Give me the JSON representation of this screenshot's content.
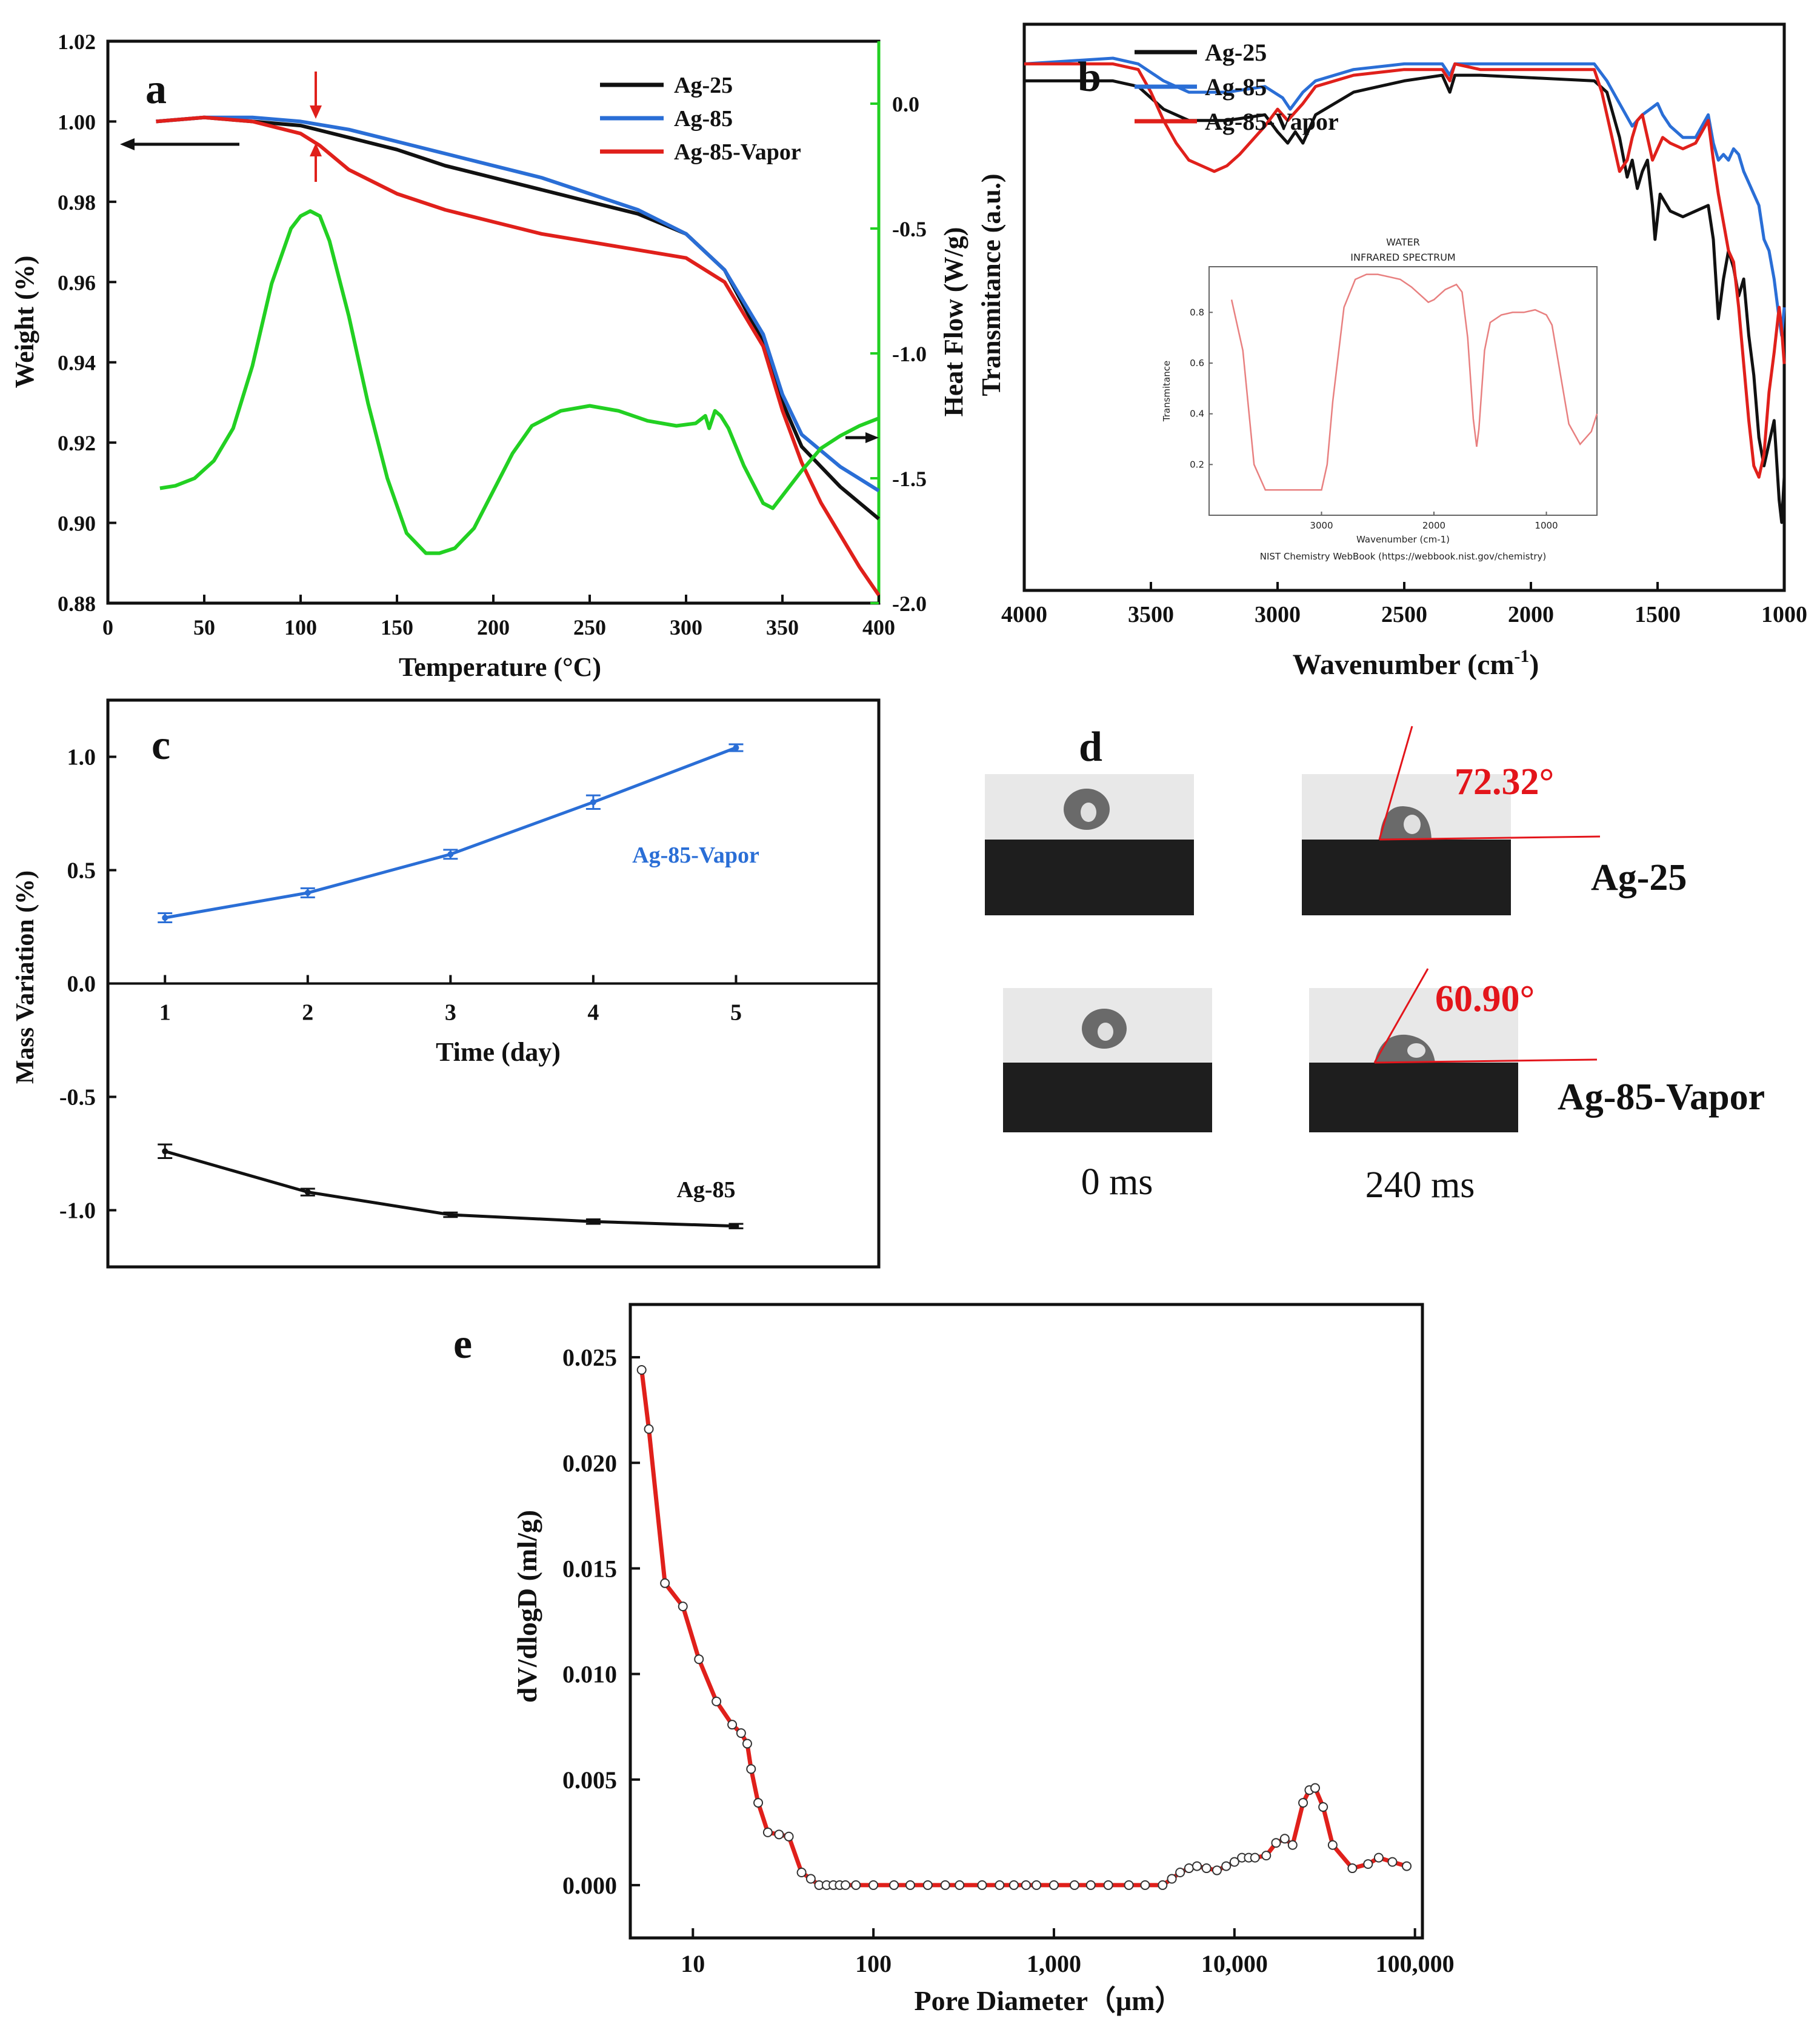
{
  "colors": {
    "black": "#111111",
    "blue": "#2a6ed6",
    "red": "#e0201b",
    "green": "#22d022",
    "inset_red": "#e88080",
    "angle_red": "#e3151b"
  },
  "chart_data": [
    {
      "panel": "a",
      "type": "line",
      "xlabel": "Temperature (°C)",
      "ylabel": "Weight (%)",
      "y2label": "Heat Flow (W/g)",
      "xlim": [
        0,
        400
      ],
      "ylim": [
        0.88,
        1.02
      ],
      "y2lim": [
        -2.0,
        0.25
      ],
      "xticks": [
        0,
        50,
        100,
        150,
        200,
        250,
        300,
        350,
        400
      ],
      "yticks": [
        0.88,
        0.9,
        0.92,
        0.94,
        0.96,
        0.98,
        1.0,
        1.02
      ],
      "y2ticks": [
        -2.0,
        -1.5,
        -1.0,
        -0.5,
        0.0
      ],
      "legend": [
        "Ag-25",
        "Ag-85",
        "Ag-85-Vapor"
      ],
      "series": [
        {
          "name": "Ag-25",
          "x": [
            25,
            50,
            75,
            100,
            125,
            150,
            175,
            200,
            225,
            250,
            275,
            300,
            320,
            340,
            350,
            360,
            370,
            380,
            390,
            400
          ],
          "y": [
            1.0,
            1.001,
            1.0,
            0.999,
            0.996,
            0.993,
            0.989,
            0.986,
            0.983,
            0.98,
            0.977,
            0.972,
            0.963,
            0.945,
            0.93,
            0.919,
            0.914,
            0.909,
            0.905,
            0.901
          ]
        },
        {
          "name": "Ag-85",
          "x": [
            25,
            50,
            75,
            100,
            125,
            150,
            175,
            200,
            225,
            250,
            275,
            300,
            320,
            340,
            350,
            360,
            370,
            380,
            390,
            400
          ],
          "y": [
            1.0,
            1.001,
            1.001,
            1.0,
            0.998,
            0.995,
            0.992,
            0.989,
            0.986,
            0.982,
            0.978,
            0.972,
            0.963,
            0.947,
            0.932,
            0.922,
            0.918,
            0.914,
            0.911,
            0.908
          ]
        },
        {
          "name": "Ag-85-Vapor",
          "x": [
            25,
            50,
            75,
            100,
            110,
            125,
            150,
            175,
            200,
            225,
            250,
            275,
            300,
            320,
            340,
            350,
            360,
            370,
            380,
            390,
            400
          ],
          "y": [
            1.0,
            1.001,
            1.0,
            0.997,
            0.994,
            0.988,
            0.982,
            0.978,
            0.975,
            0.972,
            0.97,
            0.968,
            0.966,
            0.96,
            0.944,
            0.928,
            0.915,
            0.905,
            0.897,
            0.889,
            0.882
          ]
        },
        {
          "name": "Heat Flow",
          "axis": "y2",
          "x": [
            27,
            35,
            45,
            55,
            65,
            75,
            85,
            95,
            100,
            105,
            110,
            115,
            125,
            135,
            145,
            155,
            165,
            172,
            180,
            190,
            200,
            210,
            220,
            235,
            250,
            265,
            280,
            295,
            305,
            310,
            312,
            315,
            318,
            322,
            330,
            340,
            345,
            350,
            360,
            370,
            380,
            390,
            400
          ],
          "y": [
            -1.54,
            -1.53,
            -1.5,
            -1.43,
            -1.3,
            -1.05,
            -0.72,
            -0.5,
            -0.45,
            -0.43,
            -0.45,
            -0.55,
            -0.85,
            -1.2,
            -1.5,
            -1.72,
            -1.8,
            -1.8,
            -1.78,
            -1.7,
            -1.55,
            -1.4,
            -1.29,
            -1.23,
            -1.21,
            -1.23,
            -1.27,
            -1.29,
            -1.28,
            -1.25,
            -1.3,
            -1.23,
            -1.25,
            -1.3,
            -1.45,
            -1.6,
            -1.62,
            -1.57,
            -1.47,
            -1.38,
            -1.33,
            -1.29,
            -1.26
          ]
        }
      ],
      "panel_label": "a"
    },
    {
      "panel": "b",
      "type": "line",
      "xlabel": "Wavenumber (cm",
      "xlabel_sup": "-1",
      "xlabel_end": ")",
      "ylabel": "Transmitance (a.u.)",
      "xlim": [
        4000,
        1000
      ],
      "ylim": [
        0,
        1
      ],
      "xticks": [
        4000,
        3500,
        3000,
        2500,
        2000,
        1500,
        1000
      ],
      "legend": [
        "Ag-25",
        "Ag-85",
        "Ag-85-Vapor"
      ],
      "series": [
        {
          "name": "Ag-25",
          "x": [
            4000,
            3650,
            3550,
            3450,
            3350,
            3200,
            3050,
            3000,
            2960,
            2930,
            2900,
            2850,
            2700,
            2500,
            2350,
            2320,
            2300,
            2200,
            1750,
            1700,
            1650,
            1620,
            1600,
            1580,
            1560,
            1540,
            1520,
            1510,
            1490,
            1450,
            1400,
            1350,
            1300,
            1280,
            1260,
            1240,
            1220,
            1200,
            1180,
            1160,
            1140,
            1120,
            1100,
            1080,
            1060,
            1040,
            1020,
            1010,
            1000
          ],
          "y": [
            0.9,
            0.9,
            0.89,
            0.85,
            0.83,
            0.83,
            0.84,
            0.81,
            0.79,
            0.81,
            0.79,
            0.84,
            0.88,
            0.9,
            0.91,
            0.88,
            0.91,
            0.91,
            0.9,
            0.88,
            0.8,
            0.73,
            0.76,
            0.71,
            0.74,
            0.76,
            0.68,
            0.62,
            0.7,
            0.67,
            0.66,
            0.67,
            0.68,
            0.62,
            0.48,
            0.55,
            0.6,
            0.57,
            0.52,
            0.55,
            0.45,
            0.38,
            0.27,
            0.22,
            0.26,
            0.3,
            0.16,
            0.12,
            0.2
          ]
        },
        {
          "name": "Ag-85",
          "x": [
            4000,
            3650,
            3550,
            3450,
            3350,
            3200,
            3050,
            2980,
            2950,
            2900,
            2850,
            2700,
            2500,
            2350,
            2320,
            2300,
            2200,
            1750,
            1700,
            1650,
            1600,
            1560,
            1530,
            1500,
            1480,
            1450,
            1400,
            1350,
            1300,
            1280,
            1260,
            1240,
            1220,
            1200,
            1180,
            1160,
            1140,
            1120,
            1100,
            1080,
            1060,
            1040,
            1020,
            1010,
            1000
          ],
          "y": [
            0.93,
            0.94,
            0.93,
            0.9,
            0.88,
            0.88,
            0.89,
            0.87,
            0.85,
            0.88,
            0.9,
            0.92,
            0.93,
            0.93,
            0.91,
            0.93,
            0.93,
            0.93,
            0.9,
            0.86,
            0.82,
            0.84,
            0.85,
            0.86,
            0.84,
            0.82,
            0.8,
            0.8,
            0.84,
            0.79,
            0.76,
            0.77,
            0.76,
            0.78,
            0.77,
            0.74,
            0.72,
            0.7,
            0.68,
            0.62,
            0.6,
            0.55,
            0.48,
            0.45,
            0.5
          ]
        },
        {
          "name": "Ag-85-Vapor",
          "x": [
            4000,
            3650,
            3550,
            3500,
            3450,
            3400,
            3350,
            3300,
            3250,
            3200,
            3150,
            3050,
            3000,
            2960,
            2900,
            2850,
            2700,
            2500,
            2350,
            2320,
            2300,
            2200,
            1750,
            1720,
            1700,
            1680,
            1650,
            1620,
            1600,
            1580,
            1560,
            1540,
            1520,
            1500,
            1480,
            1450,
            1400,
            1350,
            1300,
            1280,
            1260,
            1240,
            1220,
            1200,
            1180,
            1160,
            1140,
            1120,
            1100,
            1080,
            1060,
            1040,
            1020,
            1010,
            1000
          ],
          "y": [
            0.93,
            0.93,
            0.92,
            0.88,
            0.83,
            0.79,
            0.76,
            0.75,
            0.74,
            0.75,
            0.77,
            0.82,
            0.85,
            0.83,
            0.86,
            0.89,
            0.91,
            0.92,
            0.92,
            0.9,
            0.93,
            0.92,
            0.92,
            0.88,
            0.84,
            0.8,
            0.74,
            0.76,
            0.8,
            0.83,
            0.84,
            0.8,
            0.76,
            0.78,
            0.8,
            0.79,
            0.78,
            0.79,
            0.83,
            0.76,
            0.7,
            0.65,
            0.6,
            0.58,
            0.5,
            0.4,
            0.3,
            0.22,
            0.2,
            0.24,
            0.35,
            0.42,
            0.5,
            0.46,
            0.4
          ]
        }
      ],
      "panel_label": "b"
    },
    {
      "panel": "c",
      "type": "line",
      "xlabel": "Time (day)",
      "ylabel": "Mass Variation (%)",
      "xlim": [
        0.6,
        6.0
      ],
      "ylim": [
        -1.25,
        1.25
      ],
      "xticks": [
        1,
        2,
        3,
        4,
        5
      ],
      "yticks": [
        -1.0,
        -0.5,
        0.0,
        0.5,
        1.0
      ],
      "series": [
        {
          "name": "Ag-85-Vapor",
          "x": [
            1,
            2,
            3,
            4,
            5
          ],
          "y": [
            0.29,
            0.4,
            0.57,
            0.8,
            1.04
          ],
          "err": [
            0.02,
            0.02,
            0.02,
            0.03,
            0.015
          ]
        },
        {
          "name": "Ag-85",
          "x": [
            1,
            2,
            3,
            4,
            5
          ],
          "y": [
            -0.74,
            -0.92,
            -1.02,
            -1.05,
            -1.07
          ],
          "err": [
            0.03,
            0.015,
            0.01,
            0.01,
            0.01
          ]
        }
      ],
      "panel_label": "c"
    },
    {
      "panel": "e",
      "type": "line",
      "xscale": "log",
      "xlabel": "Pore Diameter（μm）",
      "ylabel": "dV/dlogD (ml/g)",
      "xlim": [
        4.5,
        110000
      ],
      "ylim": [
        -0.0025,
        0.0275
      ],
      "xticks": [
        10,
        100,
        1000,
        10000,
        100000
      ],
      "xticklabels": [
        "10",
        "100",
        "1,000",
        "10,000",
        "100,000"
      ],
      "yticks": [
        0.0,
        0.005,
        0.01,
        0.015,
        0.02,
        0.025
      ],
      "yticklabels": [
        "0.000",
        "0.005",
        "0.010",
        "0.015",
        "0.020",
        "0.025"
      ],
      "series": [
        {
          "name": "pore size distribution",
          "x": [
            5.2,
            5.7,
            7.0,
            8.8,
            10.8,
            13.5,
            16.5,
            18.5,
            20,
            21,
            23,
            26,
            30,
            34,
            40,
            45,
            50,
            55,
            60,
            65,
            70,
            80,
            100,
            130,
            160,
            200,
            250,
            300,
            400,
            500,
            600,
            700,
            800,
            1000,
            1300,
            1600,
            2000,
            2600,
            3200,
            4000,
            4500,
            5000,
            5600,
            6200,
            7000,
            8000,
            9000,
            10000,
            11000,
            12000,
            13000,
            15000,
            17000,
            19000,
            21000,
            24000,
            26000,
            28000,
            31000,
            35000,
            45000,
            55000,
            63000,
            75000,
            90000
          ],
          "y": [
            0.0244,
            0.0216,
            0.0143,
            0.0132,
            0.0107,
            0.0087,
            0.0076,
            0.0072,
            0.0067,
            0.0055,
            0.0039,
            0.0025,
            0.0024,
            0.0023,
            0.0006,
            0.0003,
            0.0,
            0.0,
            0.0,
            0.0,
            0.0,
            0.0,
            0.0,
            0.0,
            0.0,
            0.0,
            0.0,
            0.0,
            0.0,
            0.0,
            0.0,
            0.0,
            0.0,
            0.0,
            0.0,
            0.0,
            0.0,
            0.0,
            0.0,
            0.0,
            0.0003,
            0.0006,
            0.0008,
            0.0009,
            0.0008,
            0.0007,
            0.0009,
            0.0011,
            0.0013,
            0.0013,
            0.0013,
            0.0014,
            0.002,
            0.0022,
            0.0019,
            0.0039,
            0.0045,
            0.0046,
            0.0037,
            0.0019,
            0.0008,
            0.001,
            0.0013,
            0.0011,
            0.0009
          ]
        }
      ],
      "panel_label": "e"
    }
  ],
  "panel_a": {
    "y2_arrow_hint": "right",
    "y_arrow_hint": "left"
  },
  "panel_b_inset": {
    "title1": "WATER",
    "title2": "INFRARED SPECTRUM",
    "ylabel": "Transmitance",
    "xlabel": "Wavenumber (cm-1)",
    "source": "NIST Chemistry WebBook (https://webbook.nist.gov/chemistry)",
    "xticks": [
      "3000",
      "2000",
      "1000"
    ],
    "yticks": [
      "0.2",
      "0.4",
      "0.6",
      "0.8"
    ],
    "x": [
      3800,
      3700,
      3600,
      3500,
      3400,
      3300,
      3200,
      3100,
      3000,
      2950,
      2900,
      2800,
      2700,
      2600,
      2500,
      2400,
      2300,
      2200,
      2100,
      2050,
      2000,
      1900,
      1800,
      1750,
      1700,
      1650,
      1620,
      1600,
      1550,
      1500,
      1400,
      1300,
      1200,
      1100,
      1000,
      950,
      900,
      800,
      700,
      600,
      550
    ],
    "y": [
      0.85,
      0.65,
      0.2,
      0.1,
      0.1,
      0.1,
      0.1,
      0.1,
      0.1,
      0.2,
      0.45,
      0.82,
      0.93,
      0.95,
      0.95,
      0.94,
      0.93,
      0.9,
      0.86,
      0.84,
      0.85,
      0.89,
      0.91,
      0.88,
      0.7,
      0.38,
      0.27,
      0.34,
      0.65,
      0.76,
      0.79,
      0.8,
      0.8,
      0.81,
      0.79,
      0.75,
      0.62,
      0.36,
      0.28,
      0.33,
      0.4
    ]
  },
  "panel_d": {
    "panel_label": "d",
    "sample1": "Ag-25",
    "sample2": "Ag-85-Vapor",
    "angle1": "72.32°",
    "angle2": "60.90°",
    "time1": "0 ms",
    "time2": "240 ms"
  }
}
